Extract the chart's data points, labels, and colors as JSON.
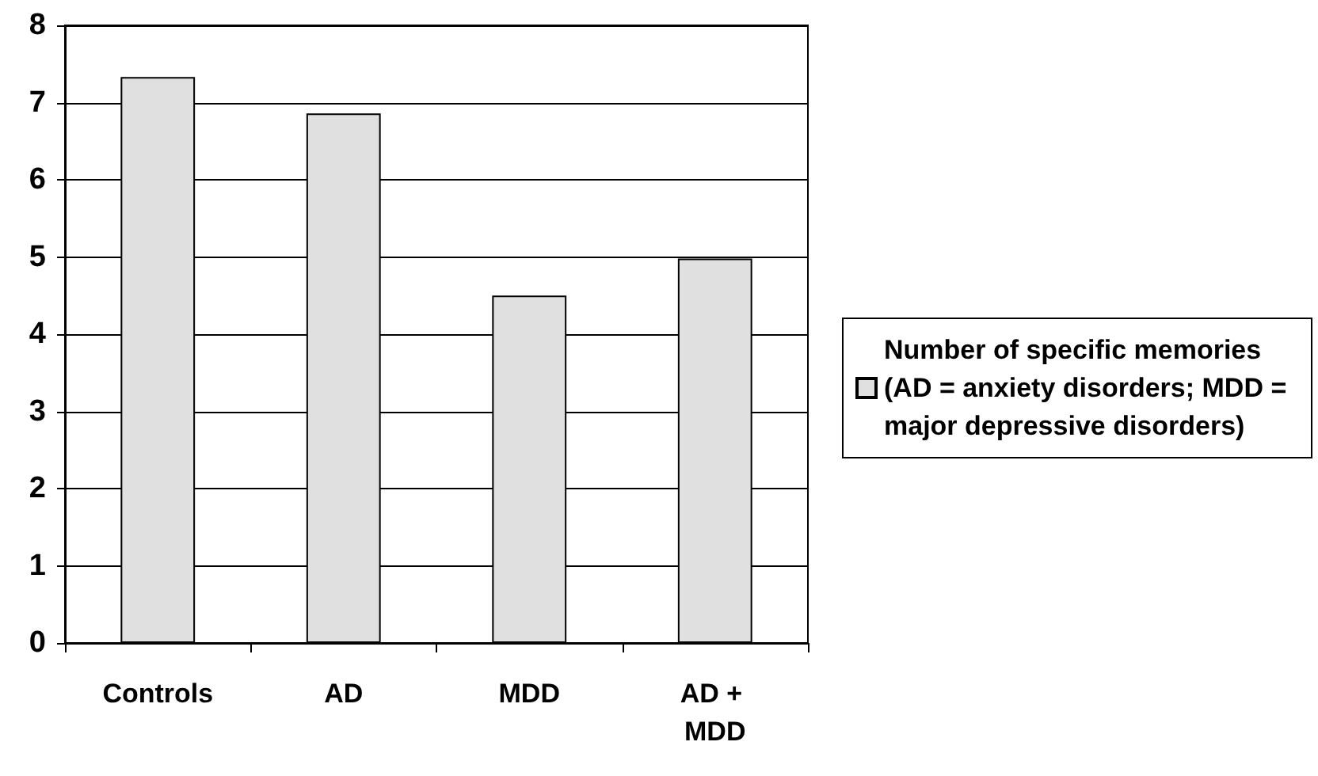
{
  "chart_data": {
    "type": "bar",
    "categories": [
      "Controls",
      "AD",
      "MDD",
      "AD + MDD"
    ],
    "series": [
      {
        "name": "Number of specific memories (AD = anxiety disorders; MDD = major depressive disorders)",
        "color": "#e0e0e0",
        "values": [
          7.33,
          6.86,
          4.5,
          4.98
        ]
      }
    ],
    "ylim": [
      0,
      8
    ],
    "yticks": [
      0,
      1,
      2,
      3,
      4,
      5,
      6,
      7,
      8
    ],
    "grid": "y",
    "legend": "right"
  }
}
